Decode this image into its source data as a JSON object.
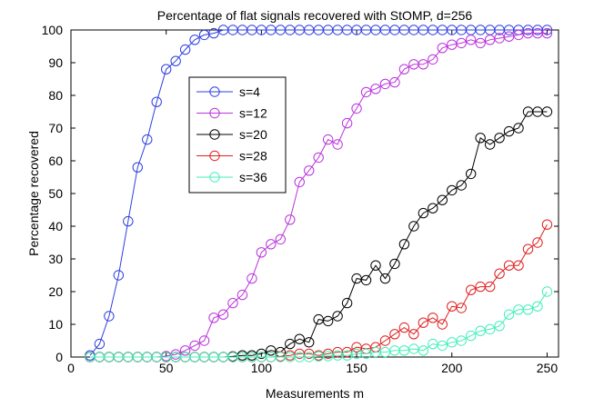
{
  "chart_data": {
    "type": "line",
    "title": "Percentage of flat signals recovered with StOMP, d=256",
    "xlabel": "Measurements m",
    "ylabel": "Percentage recovered",
    "xlim": [
      0,
      256
    ],
    "ylim": [
      0,
      100
    ],
    "xticks": [
      0,
      50,
      100,
      150,
      200,
      250
    ],
    "yticks": [
      0,
      10,
      20,
      30,
      40,
      50,
      60,
      70,
      80,
      90,
      100
    ],
    "grid": false,
    "legend_position": "upper-left inside axes",
    "x": [
      10,
      15,
      20,
      25,
      30,
      35,
      40,
      45,
      50,
      55,
      60,
      65,
      70,
      75,
      80,
      85,
      90,
      95,
      100,
      105,
      110,
      115,
      120,
      125,
      130,
      135,
      140,
      145,
      150,
      155,
      160,
      165,
      170,
      175,
      180,
      185,
      190,
      195,
      200,
      205,
      210,
      215,
      220,
      225,
      230,
      235,
      240,
      245,
      250
    ],
    "series": [
      {
        "name": "s=4",
        "color": "#2d3fe0",
        "values": [
          0.5,
          4,
          12.5,
          25,
          41.5,
          58,
          66.5,
          78,
          88,
          90.5,
          94,
          97,
          98.5,
          99,
          100,
          100,
          100,
          100,
          100,
          100,
          100,
          100,
          100,
          100,
          100,
          100,
          100,
          100,
          100,
          100,
          100,
          100,
          100,
          100,
          100,
          100,
          100,
          100,
          100,
          100,
          100,
          100,
          100,
          100,
          100,
          100,
          100,
          100,
          100
        ]
      },
      {
        "name": "s=12",
        "color": "#bb33dd",
        "values": [
          0,
          0,
          0,
          0,
          0,
          0,
          0,
          0,
          0.3,
          0.8,
          2,
          3.5,
          5,
          12,
          13,
          16.5,
          19,
          24,
          32,
          34.5,
          36,
          42,
          53.5,
          57,
          61,
          66.5,
          65,
          71.5,
          76,
          81,
          82,
          83.5,
          84,
          88,
          89.5,
          89.5,
          91,
          94.5,
          95.5,
          96,
          97,
          96,
          97,
          97.5,
          98,
          98.5,
          99,
          99,
          99
        ]
      },
      {
        "name": "s=20",
        "color": "#000000",
        "values": [
          0,
          0,
          0,
          0,
          0,
          0,
          0,
          0,
          0,
          0,
          0,
          0,
          0,
          0,
          0,
          0.2,
          0.5,
          0.5,
          1,
          2,
          1.5,
          4,
          5.5,
          4.5,
          11.5,
          11,
          12.5,
          16.5,
          24,
          23.5,
          28,
          24,
          28.5,
          34.5,
          40,
          44,
          45.5,
          48,
          51,
          52.5,
          56,
          67,
          65,
          67,
          69,
          70,
          75,
          75,
          75
        ]
      },
      {
        "name": "s=28",
        "color": "#e02020",
        "values": [
          0,
          0,
          0,
          0,
          0,
          0,
          0,
          0,
          0,
          0,
          0,
          0,
          0,
          0,
          0,
          0,
          0,
          0,
          0,
          0,
          0.2,
          0.5,
          1,
          1,
          0.5,
          1,
          1.5,
          1.5,
          3,
          2.5,
          3,
          5,
          7,
          9,
          7,
          10.5,
          12,
          10,
          15.5,
          15,
          20.5,
          21.5,
          21.5,
          25.5,
          28,
          28,
          33,
          35,
          40.5
        ]
      },
      {
        "name": "s=36",
        "color": "#44eebb",
        "values": [
          0,
          0,
          0,
          0,
          0,
          0,
          0,
          0,
          0,
          0,
          0,
          0,
          0,
          0,
          0,
          0,
          0,
          0,
          0,
          0,
          0,
          0,
          0,
          0,
          0.2,
          0.3,
          0.5,
          0.5,
          1,
          1,
          1.5,
          1.5,
          2,
          2,
          2.5,
          2,
          4,
          3.5,
          4.5,
          5,
          6.5,
          8,
          8.5,
          9.5,
          13,
          14.5,
          14.5,
          15.5,
          20
        ]
      }
    ]
  }
}
